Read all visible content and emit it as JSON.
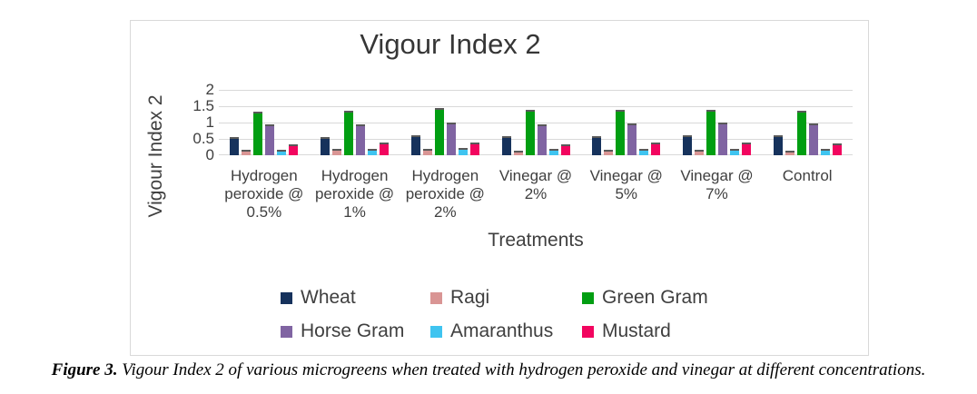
{
  "figure": {
    "caption_prefix": "Figure 3.",
    "caption_text": " Vigour Index 2 of various microgreens when treated with hydrogen peroxide and vinegar at different concentrations."
  },
  "chart_data": {
    "type": "bar",
    "title": "Vigour Index 2",
    "xlabel": "Treatments",
    "ylabel": "Vigour Index 2",
    "ylim": [
      0,
      2
    ],
    "yticks": [
      2,
      1.5,
      1,
      0.5,
      0
    ],
    "ytick_labels": [
      "2",
      "1.5",
      "1",
      "0.5",
      "0"
    ],
    "grid": true,
    "legend_position": "bottom",
    "categories": [
      "Hydrogen peroxide @ 0.5%",
      "Hydrogen peroxide @ 1%",
      "Hydrogen peroxide @ 2%",
      "Vinegar @ 2%",
      "Vinegar @ 5%",
      "Vinegar @ 7%",
      "Control"
    ],
    "series": [
      {
        "name": "Wheat",
        "color": "#16325c",
        "values": [
          0.56,
          0.56,
          0.6,
          0.59,
          0.57,
          0.6,
          0.6
        ]
      },
      {
        "name": "Ragi",
        "color": "#d99594",
        "values": [
          0.18,
          0.2,
          0.19,
          0.15,
          0.16,
          0.18,
          0.15
        ]
      },
      {
        "name": "Green Gram",
        "color": "#019e12",
        "values": [
          1.32,
          1.37,
          1.45,
          1.4,
          1.39,
          1.39,
          1.37
        ]
      },
      {
        "name": "Horse Gram",
        "color": "#8064a2",
        "values": [
          0.95,
          0.95,
          1.0,
          0.94,
          0.97,
          0.99,
          0.96
        ]
      },
      {
        "name": "Amaranthus",
        "color": "#3fc4f0",
        "values": [
          0.17,
          0.2,
          0.21,
          0.19,
          0.19,
          0.2,
          0.19
        ]
      },
      {
        "name": "Mustard",
        "color": "#f2055f",
        "values": [
          0.34,
          0.38,
          0.39,
          0.34,
          0.39,
          0.4,
          0.36
        ]
      }
    ],
    "bar_cap_color": "#595959",
    "gridline_color": "#d9d9d9"
  }
}
